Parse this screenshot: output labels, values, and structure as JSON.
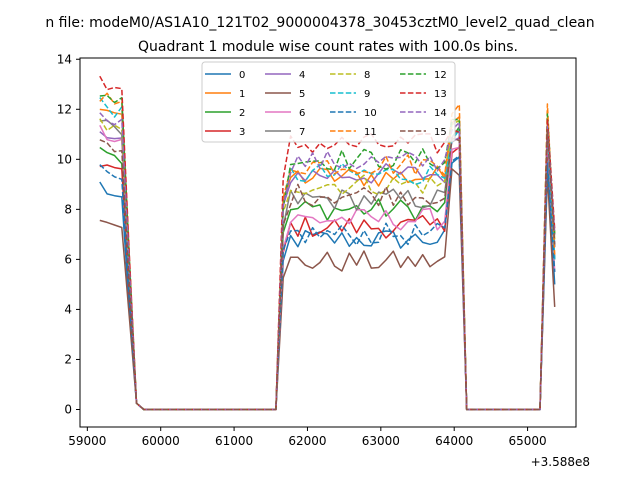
{
  "chart_data": {
    "type": "line",
    "suptitle": "n file: modeM0/AS1A10_121T02_9000004378_30453cztM0_level2_quad_clean",
    "title": "Quadrant 1 module wise count rates with 100.0s bins.",
    "xlabel": "",
    "ylabel": "",
    "x_offset_label": "+3.588e8",
    "xlim": [
      58900,
      65660
    ],
    "ylim": [
      -0.7,
      14.05
    ],
    "xticks": [
      59000,
      60000,
      61000,
      62000,
      63000,
      64000,
      65000
    ],
    "xtick_labels": [
      "59000",
      "60000",
      "61000",
      "62000",
      "63000",
      "64000",
      "65000"
    ],
    "yticks": [
      0,
      2,
      4,
      6,
      8,
      10,
      12,
      14
    ],
    "ytick_labels": [
      "0",
      "2",
      "4",
      "6",
      "8",
      "10",
      "12",
      "14"
    ],
    "grid": false,
    "legend_position": "top-center",
    "legend_columns": 4,
    "x_segments": [
      {
        "start": 59170,
        "end": 59470
      },
      {
        "start": 59570,
        "end": 59770
      },
      {
        "start": 61570,
        "end": 61570
      },
      {
        "start": 61670,
        "end": 64070
      },
      {
        "start": 64170,
        "end": 65170
      },
      {
        "start": 65270,
        "end": 65370
      }
    ],
    "series": [
      {
        "name": "0",
        "color": "#1f77b4",
        "dash": false,
        "start": 9.0,
        "end": 8.2,
        "gap_level": 6.8,
        "peak": 9.9,
        "tail": 5.0
      },
      {
        "name": "1",
        "color": "#ff7f0e",
        "dash": false,
        "start": 12.2,
        "end": 11.8,
        "gap_level": 9.3,
        "peak": 11.6,
        "tail": 7.0
      },
      {
        "name": "2",
        "color": "#2ca02c",
        "dash": false,
        "start": 10.6,
        "end": 10.0,
        "gap_level": 8.0,
        "peak": 11.0,
        "tail": 6.5
      },
      {
        "name": "3",
        "color": "#d62728",
        "dash": false,
        "start": 9.9,
        "end": 9.4,
        "gap_level": 7.3,
        "peak": 10.4,
        "tail": 6.0
      },
      {
        "name": "4",
        "color": "#9467bd",
        "dash": false,
        "start": 11.0,
        "end": 10.6,
        "gap_level": 9.4,
        "peak": 10.8,
        "tail": 6.5
      },
      {
        "name": "5",
        "color": "#8c564b",
        "dash": false,
        "start": 7.8,
        "end": 7.5,
        "gap_level": 5.9,
        "peak": 9.5,
        "tail": 4.1
      },
      {
        "name": "6",
        "color": "#e377c2",
        "dash": false,
        "start": 11.2,
        "end": 10.8,
        "gap_level": 7.6,
        "peak": 10.6,
        "tail": 5.5
      },
      {
        "name": "7",
        "color": "#7f7f7f",
        "dash": false,
        "start": 11.4,
        "end": 11.0,
        "gap_level": 8.4,
        "peak": 11.0,
        "tail": 6.0
      },
      {
        "name": "8",
        "color": "#bcbd22",
        "dash": true,
        "start": 11.5,
        "end": 11.0,
        "gap_level": 9.0,
        "peak": 11.5,
        "tail": 6.8
      },
      {
        "name": "9",
        "color": "#17becf",
        "dash": true,
        "start": 12.3,
        "end": 11.8,
        "gap_level": 9.4,
        "peak": 11.0,
        "tail": 6.0
      },
      {
        "name": "10",
        "color": "#1f77b4",
        "dash": true,
        "start": 9.5,
        "end": 9.0,
        "gap_level": 7.0,
        "peak": 10.0,
        "tail": 5.5
      },
      {
        "name": "11",
        "color": "#ff7f0e",
        "dash": true,
        "start": 12.6,
        "end": 12.1,
        "gap_level": 9.8,
        "peak": 12.0,
        "tail": 6.2
      },
      {
        "name": "12",
        "color": "#2ca02c",
        "dash": true,
        "start": 12.7,
        "end": 12.3,
        "gap_level": 10.0,
        "peak": 11.6,
        "tail": 7.0
      },
      {
        "name": "13",
        "color": "#d62728",
        "dash": true,
        "start": 13.3,
        "end": 12.6,
        "gap_level": 10.6,
        "peak": 11.3,
        "tail": 7.2
      },
      {
        "name": "14",
        "color": "#9467bd",
        "dash": true,
        "start": 12.0,
        "end": 11.4,
        "gap_level": 9.9,
        "peak": 11.2,
        "tail": 7.0
      },
      {
        "name": "15",
        "color": "#8c564b",
        "dash": true,
        "start": 10.6,
        "end": 10.2,
        "gap_level": 8.6,
        "peak": 10.8,
        "tail": 6.6
      }
    ]
  }
}
